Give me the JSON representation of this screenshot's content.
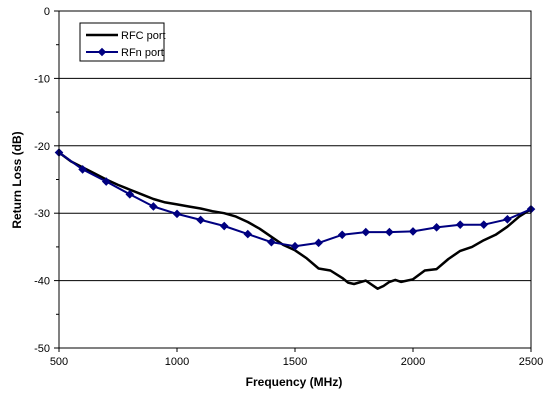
{
  "chart_data": {
    "type": "line",
    "xlabel": "Frequency (MHz)",
    "ylabel": "Return Loss (dB)",
    "xlim": [
      500,
      2500
    ],
    "ylim": [
      -50,
      0
    ],
    "x_ticks": [
      "500",
      "1000",
      "1500",
      "2000",
      "2500"
    ],
    "y_ticks": [
      "0",
      "-10",
      "-20",
      "-30",
      "-40",
      "-50"
    ],
    "grid": "horizontal",
    "legend_position": "top-left",
    "series": [
      {
        "name": "RFC port",
        "color": "#000000",
        "marker": "none",
        "x": [
          500,
          550,
          600,
          650,
          700,
          750,
          800,
          850,
          900,
          950,
          1000,
          1050,
          1100,
          1150,
          1200,
          1250,
          1300,
          1350,
          1400,
          1450,
          1500,
          1550,
          1600,
          1650,
          1700,
          1725,
          1750,
          1800,
          1850,
          1875,
          1900,
          1925,
          1950,
          2000,
          2050,
          2100,
          2150,
          2200,
          2250,
          2300,
          2350,
          2400,
          2450,
          2500
        ],
        "y": [
          -21,
          -22.3,
          -23.2,
          -24.1,
          -25.0,
          -25.8,
          -26.5,
          -27.2,
          -27.9,
          -28.4,
          -28.7,
          -29.0,
          -29.3,
          -29.7,
          -30.0,
          -30.5,
          -31.3,
          -32.3,
          -33.5,
          -34.7,
          -35.5,
          -36.7,
          -38.2,
          -38.5,
          -39.6,
          -40.3,
          -40.5,
          -40.0,
          -41.2,
          -40.8,
          -40.2,
          -39.9,
          -40.2,
          -39.8,
          -38.5,
          -38.3,
          -36.8,
          -35.6,
          -35.0,
          -34.0,
          -33.2,
          -32.0,
          -30.5,
          -29.4
        ]
      },
      {
        "name": "RFn port",
        "color": "#000080",
        "marker": "diamond",
        "x": [
          500,
          600,
          700,
          800,
          900,
          1000,
          1100,
          1200,
          1300,
          1400,
          1500,
          1600,
          1700,
          1800,
          1900,
          2000,
          2100,
          2200,
          2300,
          2400,
          2500
        ],
        "y": [
          -21.0,
          -23.5,
          -25.3,
          -27.2,
          -29.0,
          -30.1,
          -31.0,
          -31.9,
          -33.1,
          -34.3,
          -34.9,
          -34.4,
          -33.2,
          -32.8,
          -32.8,
          -32.7,
          -32.1,
          -31.7,
          -31.7,
          -30.9,
          -29.4
        ]
      }
    ]
  }
}
